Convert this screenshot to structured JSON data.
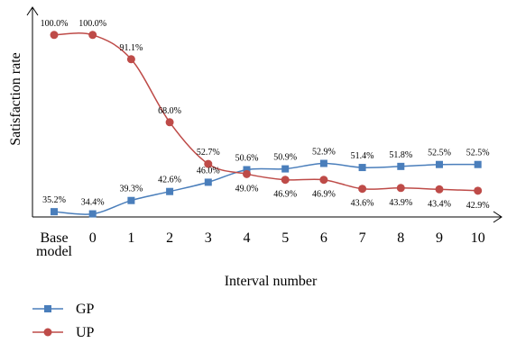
{
  "chart_data": {
    "type": "line",
    "categories": [
      "Base model",
      "0",
      "1",
      "2",
      "3",
      "4",
      "5",
      "6",
      "7",
      "8",
      "9",
      "10"
    ],
    "xlabel": "Interval number",
    "ylabel": "Satisfaction rate",
    "ylim": [
      0,
      100
    ],
    "grid": false,
    "legend_position": "bottom-left",
    "series": [
      {
        "name": "GP",
        "color": "#4a7ebb",
        "marker": "square",
        "values": [
          35.2,
          34.4,
          39.3,
          42.6,
          46.0,
          50.6,
          50.9,
          52.9,
          51.4,
          51.8,
          52.5,
          52.5
        ],
        "labels": [
          "35.2%",
          "34.4%",
          "39.3%",
          "42.6%",
          "46.0%",
          "50.6%",
          "50.9%",
          "52.9%",
          "51.4%",
          "51.8%",
          "52.5%",
          "52.5%"
        ]
      },
      {
        "name": "UP",
        "color": "#be4b48",
        "marker": "circle",
        "values": [
          100.0,
          100.0,
          91.1,
          68.0,
          52.7,
          49.0,
          46.9,
          46.9,
          43.6,
          43.9,
          43.4,
          42.9
        ],
        "labels": [
          "100.0%",
          "100.0%",
          "91.1%",
          "68.0%",
          "52.7%",
          "49.0%",
          "46.9%",
          "46.9%",
          "43.6%",
          "43.9%",
          "43.4%",
          "42.9%"
        ]
      }
    ]
  }
}
